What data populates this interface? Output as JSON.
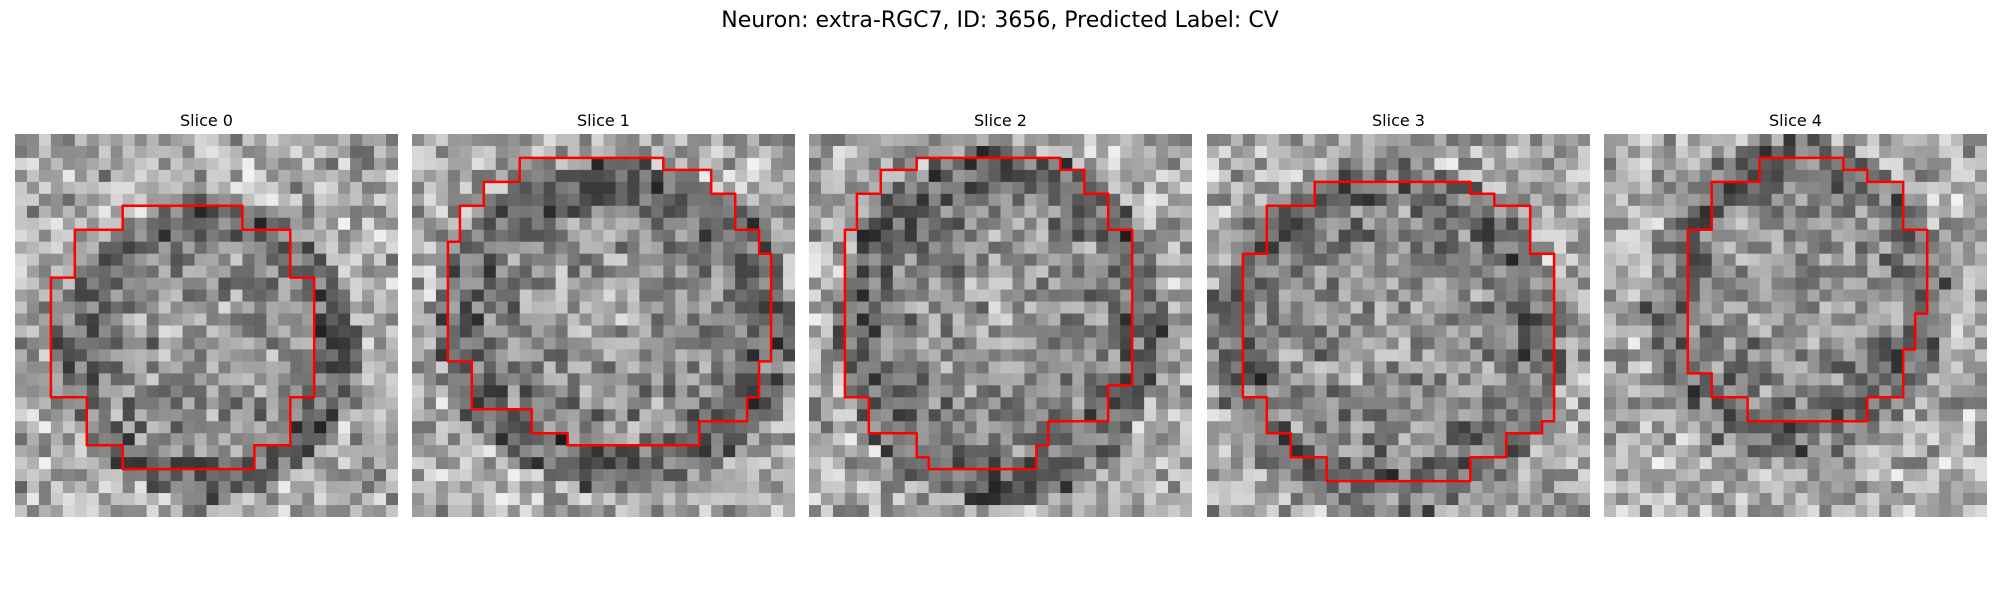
{
  "figure": {
    "title": "Neuron: extra-RGC7, ID: 3656, Predicted Label: CV",
    "contour_color": "#ff0000"
  },
  "panels": [
    {
      "title": "Slice 0"
    },
    {
      "title": "Slice 1"
    },
    {
      "title": "Slice 2"
    },
    {
      "title": "Slice 3"
    },
    {
      "title": "Slice 4"
    }
  ]
}
